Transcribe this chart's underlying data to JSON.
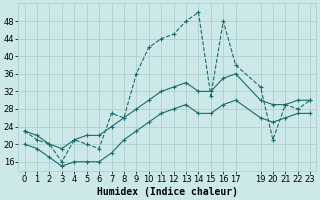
{
  "xlabel": "Humidex (Indice chaleur)",
  "bg_color": "#cce8e8",
  "line_color": "#1a6b6b",
  "grid_color": "#aacccc",
  "xlim": [
    -0.5,
    23.5
  ],
  "ylim": [
    14,
    52
  ],
  "yticks": [
    16,
    20,
    24,
    28,
    32,
    36,
    40,
    44,
    48
  ],
  "xtick_vals": [
    0,
    1,
    2,
    3,
    4,
    5,
    6,
    7,
    8,
    9,
    10,
    11,
    12,
    13,
    14,
    15,
    16,
    17,
    19,
    20,
    21,
    22,
    23
  ],
  "xtick_labels": [
    "0",
    "1",
    "2",
    "3",
    "4",
    "5",
    "6",
    "7",
    "8",
    "9",
    "10",
    "11",
    "12",
    "13",
    "14",
    "15",
    "16",
    "17",
    "19",
    "20",
    "21",
    "22",
    "23"
  ],
  "line1_x": [
    0,
    1,
    2,
    3,
    4,
    5,
    6,
    7,
    8,
    9,
    10,
    11,
    12,
    13,
    14,
    15,
    16,
    17,
    19,
    20,
    21,
    22,
    23
  ],
  "line1_y": [
    23,
    21,
    20,
    16,
    21,
    20,
    19,
    27,
    26,
    36,
    42,
    44,
    45,
    48,
    50,
    31,
    48,
    38,
    33,
    21,
    29,
    28,
    30
  ],
  "line2_x": [
    0,
    1,
    2,
    3,
    4,
    5,
    6,
    7,
    8,
    9,
    10,
    11,
    12,
    13,
    14,
    15,
    16,
    17,
    19,
    20,
    21,
    22,
    23
  ],
  "line2_y": [
    23,
    22,
    20,
    19,
    21,
    22,
    22,
    24,
    26,
    28,
    30,
    32,
    33,
    34,
    32,
    32,
    35,
    36,
    30,
    29,
    29,
    30,
    30
  ],
  "line3_x": [
    0,
    1,
    2,
    3,
    4,
    5,
    6,
    7,
    8,
    9,
    10,
    11,
    12,
    13,
    14,
    15,
    16,
    17,
    19,
    20,
    21,
    22,
    23
  ],
  "line3_y": [
    20,
    19,
    17,
    15,
    16,
    16,
    16,
    18,
    21,
    23,
    25,
    27,
    28,
    29,
    27,
    27,
    29,
    30,
    26,
    25,
    26,
    27,
    27
  ],
  "tick_label_fontsize": 6,
  "axis_label_fontsize": 7,
  "linewidth": 0.8,
  "markersize": 3
}
